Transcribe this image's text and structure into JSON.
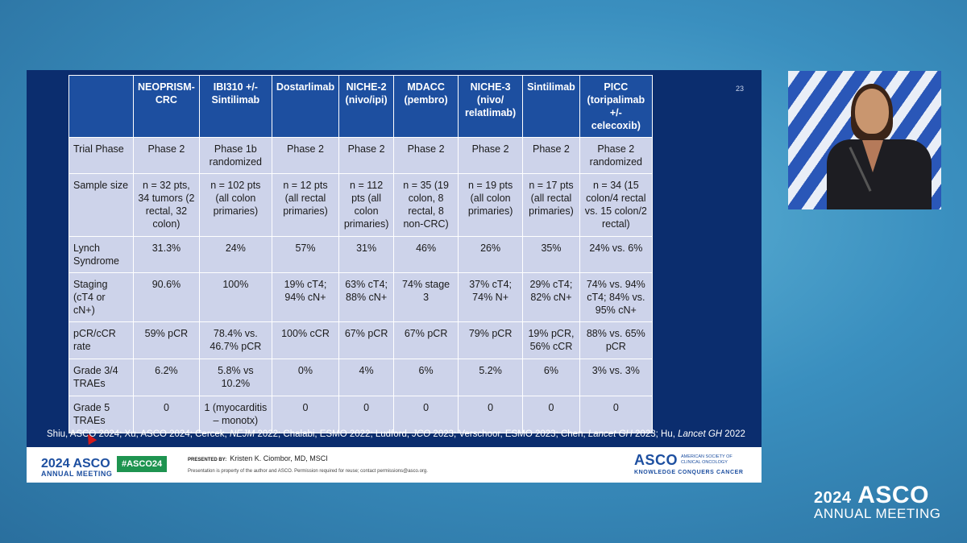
{
  "slide": {
    "number": "23",
    "table": {
      "headers": [
        "",
        "NEOPRISM-CRC",
        "IBI310 +/- Sintilimab",
        "Dostarlimab",
        "NICHE-2 (nivo/ipi)",
        "MDACC (pembro)",
        "NICHE-3 (nivo/ relatlimab)",
        "Sintilimab",
        "PICC (toripalimab +/- celecoxib)"
      ],
      "rows": [
        [
          "Trial Phase",
          "Phase 2",
          "Phase 1b randomized",
          "Phase 2",
          "Phase 2",
          "Phase 2",
          "Phase 2",
          "Phase 2",
          "Phase 2 randomized"
        ],
        [
          "Sample size",
          "n = 32 pts, 34 tumors (2 rectal, 32 colon)",
          "n = 102 pts (all colon primaries)",
          "n = 12 pts (all rectal primaries)",
          "n = 112 pts (all colon primaries)",
          "n = 35 (19 colon, 8 rectal, 8 non-CRC)",
          "n = 19 pts (all colon primaries)",
          "n = 17 pts (all rectal primaries)",
          "n = 34 (15 colon/4 rectal vs. 15 colon/2 rectal)"
        ],
        [
          "Lynch Syndrome",
          "31.3%",
          "24%",
          "57%",
          "31%",
          "46%",
          "26%",
          "35%",
          "24% vs. 6%"
        ],
        [
          "Staging (cT4 or cN+)",
          "90.6%",
          "100%",
          "19% cT4; 94% cN+",
          "63% cT4; 88% cN+",
          "74% stage 3",
          "37% cT4; 74% N+",
          "29% cT4; 82% cN+",
          "74% vs. 94% cT4; 84% vs. 95% cN+"
        ],
        [
          "pCR/cCR rate",
          "59% pCR",
          "78.4% vs. 46.7% pCR",
          "100% cCR",
          "67% pCR",
          "67% pCR",
          "79% pCR",
          "19% pCR, 56% cCR",
          "88% vs. 65% pCR"
        ],
        [
          "Grade 3/4 TRAEs",
          "6.2%",
          "5.8% vs 10.2%",
          "0%",
          "4%",
          "6%",
          "5.2%",
          "6%",
          "3% vs. 3%"
        ],
        [
          "Grade 5 TRAEs",
          "0",
          "1 (myocarditis – monotx)",
          "0",
          "0",
          "0",
          "0",
          "0",
          "0"
        ]
      ]
    },
    "references": {
      "p1": "Shiu, ASCO 2024; Xu, ASCO 2024; Cercek, ",
      "i1": "NEJM",
      "p2": " 2022; Chalabi, ESMO 2022; Ludford, ",
      "i2": "JCO",
      "p3": " 2023; Verschoor, ESMO 2023; Chen, ",
      "i3": "Lancet GH",
      "p4": " 2023; Hu, ",
      "i4": "Lancet GH",
      "p5": " 2022"
    },
    "footer": {
      "year_logo": "2024 ASCO",
      "annual_meeting": "ANNUAL MEETING",
      "hashtag": "#ASCO24",
      "presented_by_label": "PRESENTED BY:",
      "presenter": "Kristen K. Ciombor, MD, MSCI",
      "note": "Presentation is property of the author and ASCO. Permission required for reuse; contact permissions@asco.org.",
      "asco": "ASCO",
      "society": "AMERICAN SOCIETY OF CLINICAL ONCOLOGY",
      "tagline": "KNOWLEDGE CONQUERS CANCER"
    }
  },
  "corner_logo": {
    "year": "2024",
    "asco": "ASCO",
    "subtitle": "ANNUAL MEETING"
  },
  "colors": {
    "slide_bg": "#0b2d6e",
    "header_bg": "#1d4fa0",
    "cell_bg": "#cdd3ea",
    "hashtag_bg": "#1e9450"
  }
}
